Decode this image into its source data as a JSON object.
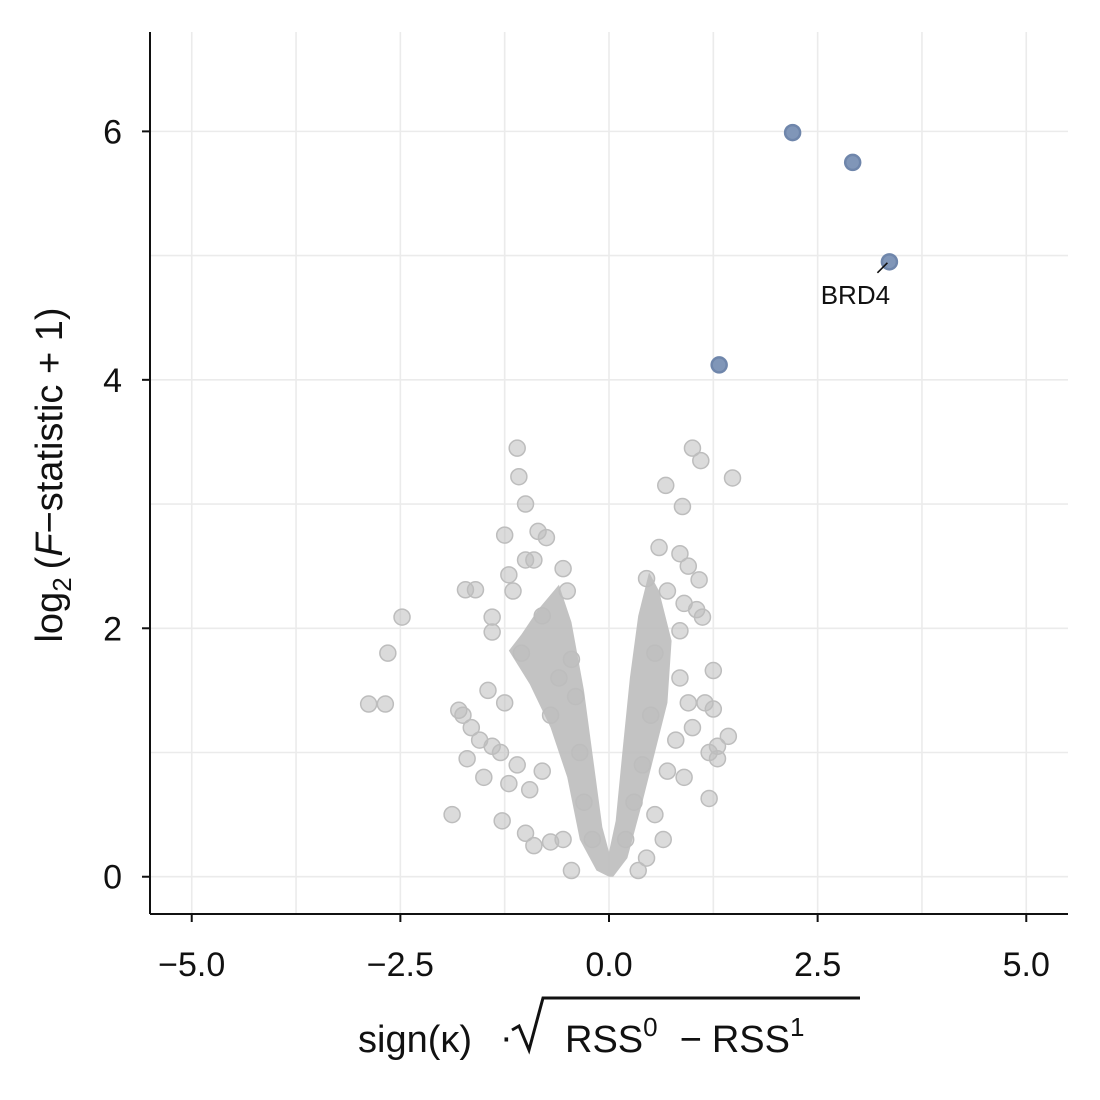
{
  "chart_data": {
    "type": "scatter",
    "title": "",
    "xlabel_parts": {
      "prefix": "sign(κ)",
      "dot": "·",
      "term0": "RSS",
      "sup0": "0",
      "minus": "−",
      "term1": "RSS",
      "sup1": "1"
    },
    "ylabel_parts": {
      "log": "log",
      "sub": "2",
      "open": "(",
      "F": "F",
      "rest": "−statistic + 1",
      "close": ")"
    },
    "xlim": [
      -5.5,
      5.5
    ],
    "ylim": [
      -0.3,
      6.8
    ],
    "x_ticks": [
      -5.0,
      -2.5,
      0.0,
      2.5,
      5.0
    ],
    "x_tick_labels": [
      "−5.0",
      "−2.5",
      "0.0",
      "2.5",
      "5.0"
    ],
    "y_ticks": [
      0,
      2,
      4,
      6
    ],
    "y_tick_labels": [
      "0",
      "2",
      "4",
      "6"
    ],
    "grid": true,
    "colors": {
      "highlight": "#8096B8",
      "highlight_edge": "#6F86AB",
      "background_points": "#BDBDBD",
      "grid": "#EBEBEB",
      "axis": "#111111"
    },
    "highlighted_points": [
      {
        "x": 2.2,
        "y": 5.99
      },
      {
        "x": 2.92,
        "y": 5.75
      },
      {
        "x": 3.36,
        "y": 4.95
      },
      {
        "x": 1.32,
        "y": 4.12
      }
    ],
    "annotations": [
      {
        "label": "BRD4",
        "x": 3.36,
        "y": 4.95
      }
    ],
    "background_points": [
      [
        -2.88,
        1.39
      ],
      [
        -2.68,
        1.39
      ],
      [
        -2.48,
        2.09
      ],
      [
        -2.65,
        1.8
      ],
      [
        -1.88,
        0.5
      ],
      [
        -1.7,
        0.95
      ],
      [
        -1.5,
        0.8
      ],
      [
        -1.45,
        1.5
      ],
      [
        -1.8,
        1.34
      ],
      [
        -1.75,
        1.3
      ],
      [
        -1.65,
        1.2
      ],
      [
        -1.55,
        1.1
      ],
      [
        -1.4,
        1.05
      ],
      [
        -1.3,
        1.0
      ],
      [
        -1.72,
        2.31
      ],
      [
        -1.6,
        2.31
      ],
      [
        -1.4,
        2.09
      ],
      [
        -1.4,
        1.97
      ],
      [
        -1.1,
        3.45
      ],
      [
        -1.08,
        3.22
      ],
      [
        -1.0,
        3.0
      ],
      [
        -1.25,
        2.75
      ],
      [
        -1.2,
        2.43
      ],
      [
        -1.15,
        2.3
      ],
      [
        -1.0,
        2.55
      ],
      [
        -0.9,
        2.55
      ],
      [
        -0.85,
        2.78
      ],
      [
        -0.75,
        2.73
      ],
      [
        -0.55,
        2.48
      ],
      [
        -0.5,
        2.3
      ],
      [
        -0.45,
        1.75
      ],
      [
        -0.4,
        1.45
      ],
      [
        -1.28,
        0.45
      ],
      [
        -1.0,
        0.35
      ],
      [
        -0.9,
        0.25
      ],
      [
        -0.7,
        0.28
      ],
      [
        -0.55,
        0.3
      ],
      [
        -0.45,
        0.05
      ],
      [
        -1.1,
        0.9
      ],
      [
        -1.2,
        0.75
      ],
      [
        -0.95,
        0.7
      ],
      [
        -0.8,
        0.85
      ],
      [
        -0.7,
        1.3
      ],
      [
        -0.35,
        1.0
      ],
      [
        -0.6,
        1.6
      ],
      [
        -0.8,
        2.1
      ],
      [
        -1.05,
        1.8
      ],
      [
        -1.25,
        1.4
      ],
      [
        1.0,
        3.45
      ],
      [
        1.1,
        3.35
      ],
      [
        1.48,
        3.21
      ],
      [
        0.68,
        3.15
      ],
      [
        0.88,
        2.98
      ],
      [
        0.6,
        2.65
      ],
      [
        0.85,
        2.6
      ],
      [
        0.95,
        2.5
      ],
      [
        1.08,
        2.39
      ],
      [
        0.7,
        2.3
      ],
      [
        0.9,
        2.2
      ],
      [
        1.05,
        2.15
      ],
      [
        1.12,
        2.09
      ],
      [
        0.85,
        1.98
      ],
      [
        1.25,
        1.66
      ],
      [
        0.85,
        1.6
      ],
      [
        1.15,
        1.4
      ],
      [
        1.25,
        1.35
      ],
      [
        1.43,
        1.13
      ],
      [
        1.3,
        1.05
      ],
      [
        1.2,
        1.0
      ],
      [
        1.3,
        0.95
      ],
      [
        0.9,
        0.8
      ],
      [
        1.2,
        0.63
      ],
      [
        0.7,
        0.85
      ],
      [
        0.55,
        0.5
      ],
      [
        0.65,
        0.3
      ],
      [
        0.45,
        0.15
      ],
      [
        0.35,
        0.05
      ],
      [
        0.95,
        1.4
      ],
      [
        1.0,
        1.2
      ],
      [
        0.8,
        1.1
      ],
      [
        0.55,
        1.8
      ],
      [
        0.45,
        2.4
      ],
      [
        0.5,
        1.3
      ],
      [
        0.4,
        0.9
      ],
      [
        0.3,
        0.6
      ],
      [
        -0.3,
        0.6
      ],
      [
        0.2,
        0.3
      ],
      [
        -0.2,
        0.3
      ]
    ]
  }
}
